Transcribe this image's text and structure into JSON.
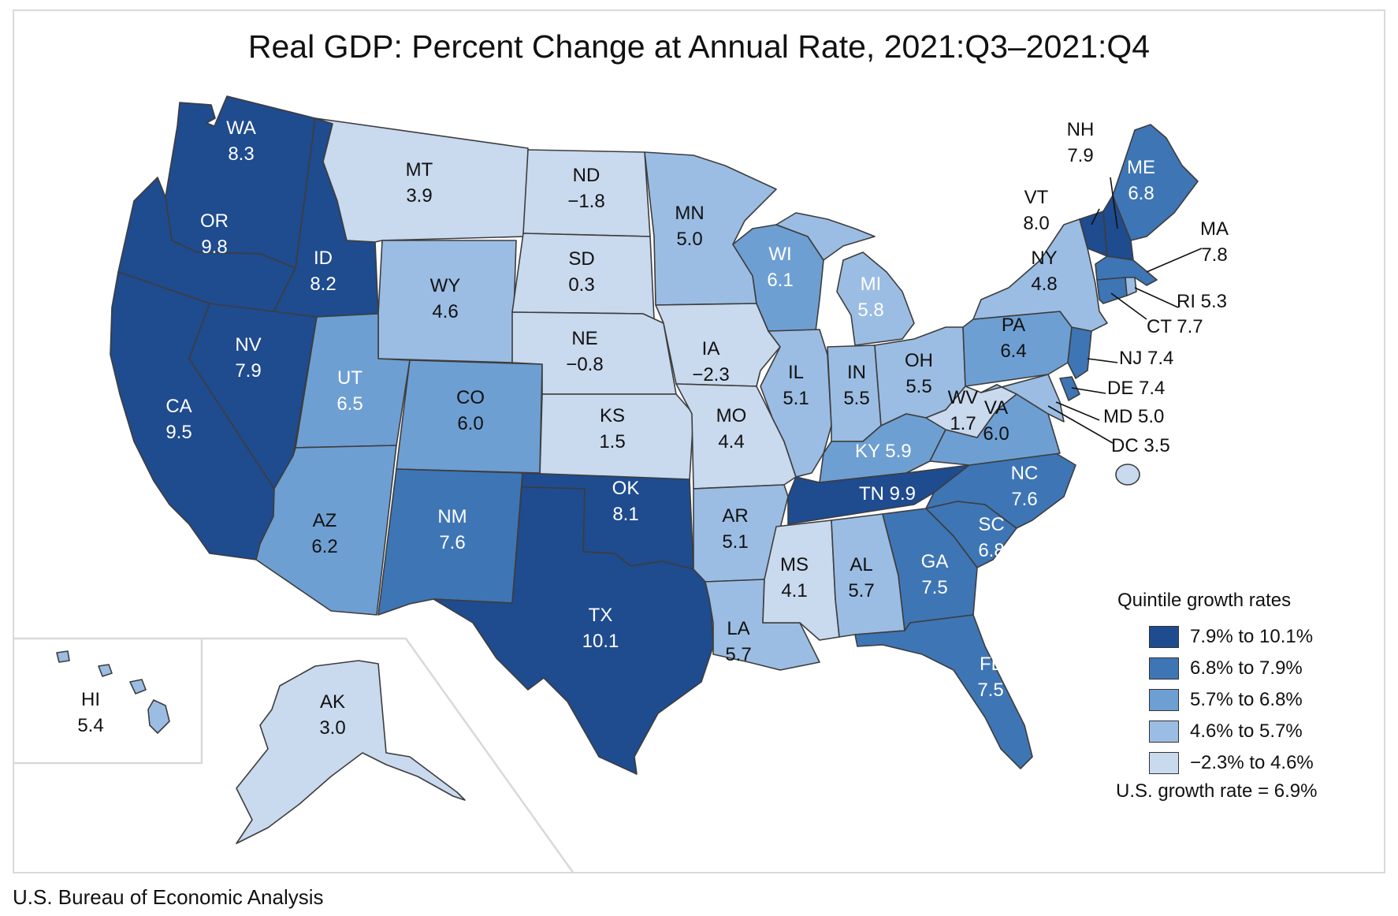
{
  "title": "Real GDP: Percent Change at Annual Rate, 2021:Q3–2021:Q4",
  "source": "U.S. Bureau of Economic Analysis",
  "colors": {
    "q1": "#1f4b8f",
    "q2": "#3e75b5",
    "q3": "#6e9fd2",
    "q4": "#9bbde3",
    "q5": "#c9d9ee"
  },
  "legend": {
    "title": "Quintile growth rates",
    "items": [
      {
        "label": "7.9% to 10.1%"
      },
      {
        "label": "6.8% to 7.9%"
      },
      {
        "label": "5.7% to 6.8%"
      },
      {
        "label": "4.6% to 5.7%"
      },
      {
        "label": "−2.3% to 4.6%"
      }
    ],
    "us_rate": "U.S. growth rate = 6.9%"
  },
  "states": {
    "WA": {
      "abbr": "WA",
      "value": "8.3"
    },
    "OR": {
      "abbr": "OR",
      "value": "9.8"
    },
    "CA": {
      "abbr": "CA",
      "value": "9.5"
    },
    "ID": {
      "abbr": "ID",
      "value": "8.2"
    },
    "NV": {
      "abbr": "NV",
      "value": "7.9"
    },
    "MT": {
      "abbr": "MT",
      "value": "3.9"
    },
    "WY": {
      "abbr": "WY",
      "value": "4.6"
    },
    "UT": {
      "abbr": "UT",
      "value": "6.5"
    },
    "CO": {
      "abbr": "CO",
      "value": "6.0"
    },
    "AZ": {
      "abbr": "AZ",
      "value": "6.2"
    },
    "NM": {
      "abbr": "NM",
      "value": "7.6"
    },
    "ND": {
      "abbr": "ND",
      "value": "−1.8"
    },
    "SD": {
      "abbr": "SD",
      "value": "0.3"
    },
    "NE": {
      "abbr": "NE",
      "value": "−0.8"
    },
    "KS": {
      "abbr": "KS",
      "value": "1.5"
    },
    "OK": {
      "abbr": "OK",
      "value": "8.1"
    },
    "TX": {
      "abbr": "TX",
      "value": "10.1"
    },
    "MN": {
      "abbr": "MN",
      "value": "5.0"
    },
    "IA": {
      "abbr": "IA",
      "value": "−2.3"
    },
    "MO": {
      "abbr": "MO",
      "value": "4.4"
    },
    "AR": {
      "abbr": "AR",
      "value": "5.1"
    },
    "LA": {
      "abbr": "LA",
      "value": "5.7"
    },
    "WI": {
      "abbr": "WI",
      "value": "6.1"
    },
    "IL": {
      "abbr": "IL",
      "value": "5.1"
    },
    "MI": {
      "abbr": "MI",
      "value": "5.8"
    },
    "IN": {
      "abbr": "IN",
      "value": "5.5"
    },
    "OH": {
      "abbr": "OH",
      "value": "5.5"
    },
    "KY": {
      "abbr": "KY",
      "value": "5.9"
    },
    "TN": {
      "abbr": "TN",
      "value": "9.9"
    },
    "MS": {
      "abbr": "MS",
      "value": "4.1"
    },
    "AL": {
      "abbr": "AL",
      "value": "5.7"
    },
    "GA": {
      "abbr": "GA",
      "value": "7.5"
    },
    "FL": {
      "abbr": "FL",
      "value": "7.5"
    },
    "SC": {
      "abbr": "SC",
      "value": "6.8"
    },
    "NC": {
      "abbr": "NC",
      "value": "7.6"
    },
    "VA": {
      "abbr": "VA",
      "value": "6.0"
    },
    "WV": {
      "abbr": "WV",
      "value": "1.7"
    },
    "PA": {
      "abbr": "PA",
      "value": "6.4"
    },
    "NY": {
      "abbr": "NY",
      "value": "4.8"
    },
    "ME": {
      "abbr": "ME",
      "value": "6.8"
    },
    "VT": {
      "abbr": "VT",
      "value": "8.0"
    },
    "NH": {
      "abbr": "NH",
      "value": "7.9"
    },
    "MA": {
      "abbr": "MA",
      "value": "7.8"
    },
    "RI": {
      "abbr": "RI",
      "value": "5.3"
    },
    "CT": {
      "abbr": "CT",
      "value": "7.7"
    },
    "NJ": {
      "abbr": "NJ",
      "value": "7.4"
    },
    "DE": {
      "abbr": "DE",
      "value": "7.4"
    },
    "MD": {
      "abbr": "MD",
      "value": "5.0"
    },
    "DC": {
      "abbr": "DC",
      "value": "3.5"
    },
    "HI": {
      "abbr": "HI",
      "value": "5.4"
    },
    "AK": {
      "abbr": "AK",
      "value": "3.0"
    }
  }
}
